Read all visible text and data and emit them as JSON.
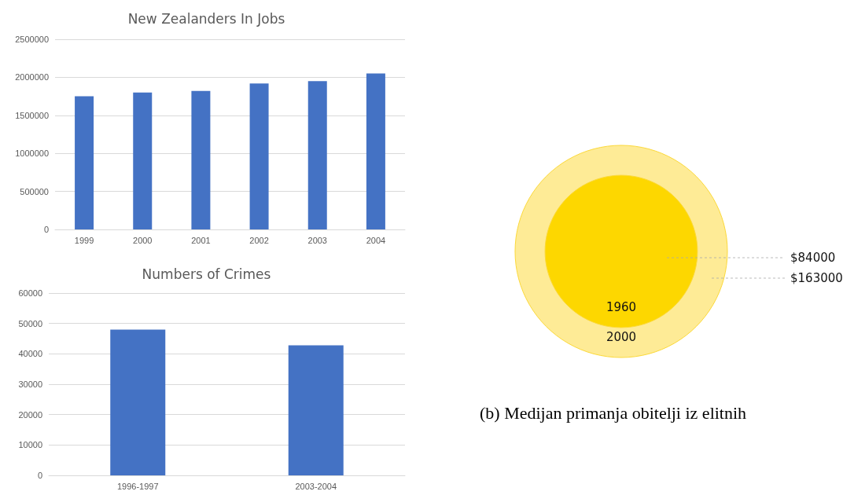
{
  "chart_data": [
    {
      "type": "bar",
      "title": "New Zealanders In Jobs",
      "categories": [
        "1999",
        "2000",
        "2001",
        "2002",
        "2003",
        "2004"
      ],
      "values": [
        1750000,
        1800000,
        1820000,
        1920000,
        1950000,
        2050000
      ],
      "color": "#4472c4",
      "ylim": [
        0,
        2500000
      ],
      "yticks": [
        0,
        500000,
        1000000,
        1500000,
        2000000,
        2500000
      ],
      "grid": "y"
    },
    {
      "type": "bar",
      "title": "Numbers of Crimes",
      "categories": [
        "1996-1997",
        "2003-2004"
      ],
      "values": [
        48000,
        42800
      ],
      "color": "#4472c4",
      "ylim": [
        0,
        60000
      ],
      "yticks": [
        0,
        10000,
        20000,
        30000,
        40000,
        50000,
        60000
      ],
      "grid": "y"
    },
    {
      "type": "other",
      "categories": [
        "1960",
        "2000"
      ],
      "values": [
        84000,
        163000
      ],
      "value_labels": [
        "$84000",
        "$163000"
      ],
      "colors": [
        "#fdd700",
        "#feeb96"
      ],
      "annotations": [
        "(b) Medijan primanja obitelji iz elitnih"
      ]
    }
  ]
}
